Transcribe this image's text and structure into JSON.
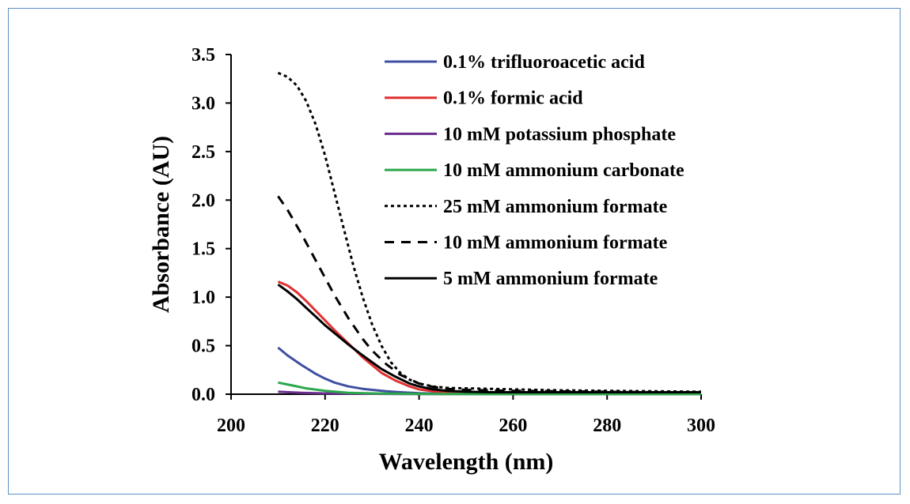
{
  "chart_data": {
    "type": "line",
    "title": "",
    "xlabel": "Wavelength  (nm)",
    "ylabel": "Absorbance  (AU)",
    "xlim": [
      200,
      300
    ],
    "ylim": [
      0,
      3.5
    ],
    "xticks": [
      "200",
      "220",
      "240",
      "260",
      "280",
      "300"
    ],
    "yticks": [
      "0.0",
      "0.5",
      "1.0",
      "1.5",
      "2.0",
      "2.5",
      "3.0",
      "3.5"
    ],
    "grid": false,
    "legend_position": "top-right",
    "series": [
      {
        "name": "0.1% trifluoroacetic acid",
        "color": "#3f4fa0",
        "style": "solid",
        "x": [
          210,
          212,
          215,
          218,
          220,
          222,
          225,
          228,
          230,
          233,
          236,
          240,
          245,
          250,
          260,
          270,
          280,
          290,
          300
        ],
        "y": [
          0.48,
          0.4,
          0.3,
          0.21,
          0.16,
          0.12,
          0.08,
          0.055,
          0.045,
          0.03,
          0.02,
          0.01,
          0.005,
          0.005,
          0.005,
          0.005,
          0.005,
          0.005,
          0.005
        ]
      },
      {
        "name": "0.1% formic acid",
        "color": "#e03030",
        "style": "solid",
        "x": [
          210,
          212,
          214,
          216,
          218,
          220,
          222,
          225,
          228,
          230,
          232,
          235,
          238,
          240,
          243,
          246,
          250,
          255,
          260,
          270,
          280,
          290,
          300
        ],
        "y": [
          1.16,
          1.12,
          1.05,
          0.96,
          0.86,
          0.76,
          0.66,
          0.52,
          0.38,
          0.3,
          0.22,
          0.14,
          0.08,
          0.05,
          0.03,
          0.02,
          0.015,
          0.01,
          0.01,
          0.01,
          0.01,
          0.01,
          0.01
        ]
      },
      {
        "name": "10 mM potassium phosphate",
        "color": "#6a2f8f",
        "style": "solid",
        "x": [
          210,
          215,
          220,
          230,
          240,
          260,
          280,
          300
        ],
        "y": [
          0.025,
          0.015,
          0.008,
          0.004,
          0.002,
          0.001,
          0.001,
          0.001
        ]
      },
      {
        "name": "10 mM ammonium carbonate",
        "color": "#2aa84a",
        "style": "solid",
        "x": [
          210,
          213,
          216,
          220,
          225,
          230,
          235,
          240,
          250,
          260,
          280,
          300
        ],
        "y": [
          0.12,
          0.09,
          0.06,
          0.035,
          0.015,
          0.008,
          0.005,
          0.003,
          0.002,
          0.002,
          0.002,
          0.002
        ]
      },
      {
        "name": "25 mM ammonium formate",
        "color": "#000000",
        "style": "dotted",
        "x": [
          210,
          212,
          214,
          216,
          218,
          220,
          222,
          224,
          226,
          228,
          230,
          232,
          234,
          236,
          238,
          240,
          243,
          246,
          250,
          255,
          260,
          270,
          280,
          290,
          300
        ],
        "y": [
          3.31,
          3.27,
          3.18,
          3.02,
          2.78,
          2.46,
          2.08,
          1.7,
          1.33,
          1.0,
          0.72,
          0.5,
          0.33,
          0.22,
          0.15,
          0.11,
          0.08,
          0.065,
          0.06,
          0.055,
          0.05,
          0.04,
          0.035,
          0.03,
          0.025
        ]
      },
      {
        "name": "10 mM ammonium formate",
        "color": "#000000",
        "style": "dashed",
        "x": [
          210,
          212,
          215,
          218,
          220,
          222,
          225,
          228,
          230,
          233,
          236,
          240,
          243,
          246,
          250,
          255,
          260,
          270,
          280,
          290,
          300
        ],
        "y": [
          2.04,
          1.9,
          1.65,
          1.38,
          1.2,
          1.02,
          0.78,
          0.57,
          0.45,
          0.31,
          0.2,
          0.11,
          0.075,
          0.055,
          0.045,
          0.04,
          0.035,
          0.03,
          0.025,
          0.02,
          0.02
        ]
      },
      {
        "name": "5 mM ammonium formate",
        "color": "#000000",
        "style": "solid",
        "x": [
          210,
          212,
          214,
          216,
          218,
          220,
          222,
          225,
          228,
          230,
          232,
          235,
          238,
          240,
          243,
          246,
          250,
          255,
          260,
          270,
          280,
          290,
          300
        ],
        "y": [
          1.13,
          1.06,
          0.98,
          0.89,
          0.8,
          0.71,
          0.63,
          0.51,
          0.4,
          0.33,
          0.26,
          0.18,
          0.11,
          0.08,
          0.05,
          0.035,
          0.025,
          0.02,
          0.02,
          0.02,
          0.02,
          0.02,
          0.02
        ]
      }
    ]
  }
}
